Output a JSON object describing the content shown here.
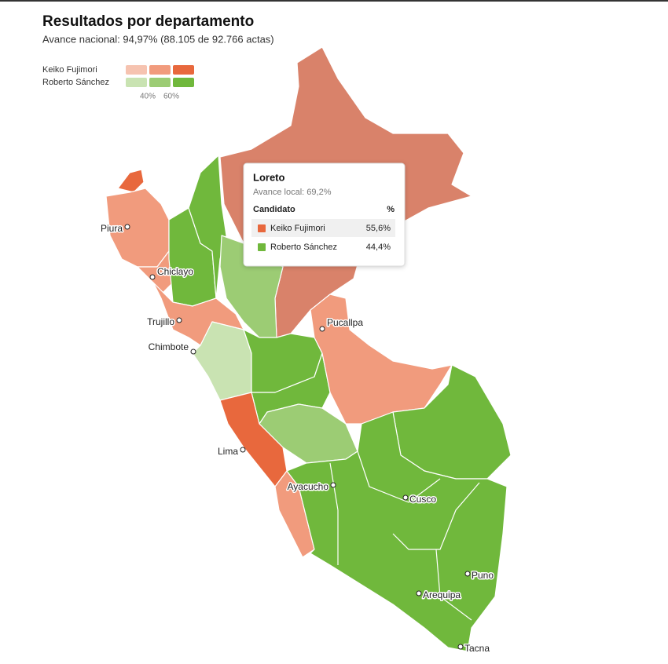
{
  "header": {
    "title": "Resultados por departamento",
    "subtitle": "Avance nacional: 94,97% (88.105 de 92.766 actas)"
  },
  "legend": {
    "items": [
      {
        "name": "Keiko Fujimori"
      },
      {
        "name": "Roberto Sánchez"
      }
    ],
    "scale_labels": [
      "40%",
      "60%"
    ]
  },
  "cities": [
    "Piura",
    "Chiclayo",
    "Trujillo",
    "Chimbote",
    "Pucallpa",
    "Lima",
    "Ayacucho",
    "Cusco",
    "Puno",
    "Arequipa",
    "Tacna"
  ],
  "tooltip": {
    "title": "Loreto",
    "subtitle": "Avance local: 69,2%",
    "columns": [
      "Candidato",
      "%"
    ],
    "rows": [
      [
        "Keiko Fujimori",
        "55,6%"
      ],
      [
        "Roberto Sánchez",
        "44,4%"
      ]
    ]
  }
}
